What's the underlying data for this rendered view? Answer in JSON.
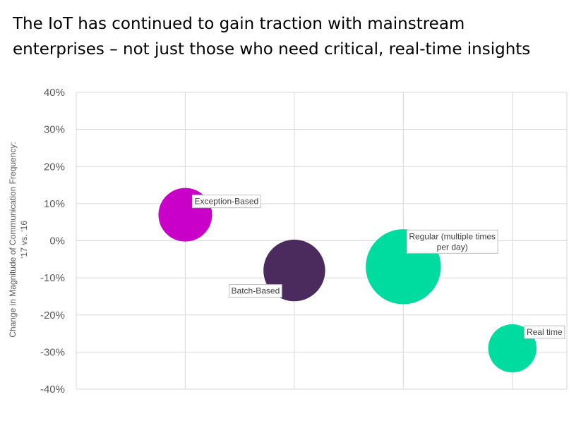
{
  "title_lines": [
    "The IoT has continued to gain traction with mainstream",
    "enterprises – not just those who need critical, real-time insights"
  ],
  "colors": {
    "grid": "#d9d9d9",
    "axis_text": "#595959",
    "label_text": "#404040"
  },
  "chart_data": {
    "type": "bubble",
    "title": "The IoT has continued to gain traction with mainstream enterprises – not just those who need critical, real-time insights",
    "xlabel": "",
    "ylabel_lines": [
      "Change in Magnitude of Communication Frequency:",
      "‘17 vs. ‘16"
    ],
    "ylim": [
      -0.4,
      0.4
    ],
    "yticks": [
      "40%",
      "30%",
      "20%",
      "10%",
      "0%",
      "-10%",
      "-20%",
      "-30%",
      "-40%"
    ],
    "ytick_values": [
      0.4,
      0.3,
      0.2,
      0.1,
      0.0,
      -0.1,
      -0.2,
      -0.3,
      -0.4
    ],
    "xlim": [
      0,
      4.5
    ],
    "grid": true,
    "legend": "none",
    "points": [
      {
        "label_lines": [
          "Exception-Based"
        ],
        "x": 1,
        "y": 0.07,
        "size": 1.0,
        "color": "#c800c8"
      },
      {
        "label_lines": [
          "Batch-Based"
        ],
        "x": 2,
        "y": -0.08,
        "size": 1.15,
        "color": "#4b2a5e"
      },
      {
        "label_lines": [
          "Regular (multiple times",
          "per day)"
        ],
        "x": 3,
        "y": -0.07,
        "size": 1.4,
        "color": "#00dba0"
      },
      {
        "label_lines": [
          "Real time"
        ],
        "x": 4,
        "y": -0.29,
        "size": 0.9,
        "color": "#00dba0"
      }
    ]
  }
}
